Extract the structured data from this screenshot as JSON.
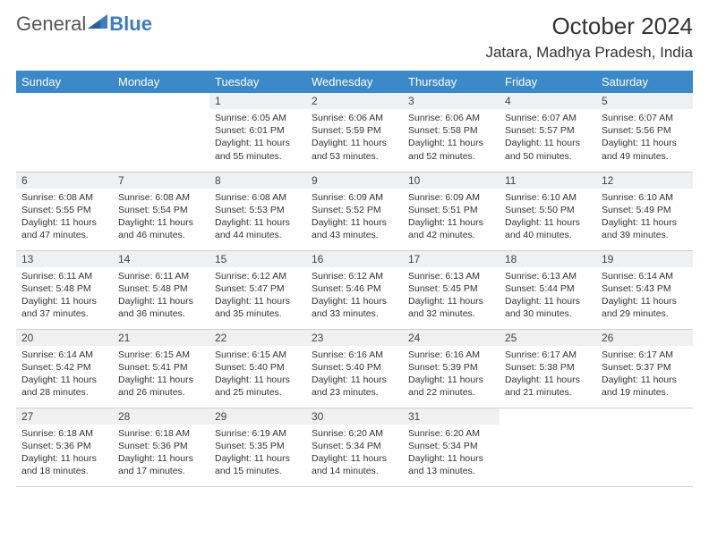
{
  "brand": {
    "part1": "General",
    "part2": "Blue"
  },
  "title": "October 2024",
  "location": "Jatara, Madhya Pradesh, India",
  "colors": {
    "header_bg": "#3b89c9",
    "header_text": "#ffffff",
    "daynum_bg": "#eef0f1",
    "border": "#d0d0d0",
    "brand_accent": "#3b7ebf"
  },
  "daysOfWeek": [
    "Sunday",
    "Monday",
    "Tuesday",
    "Wednesday",
    "Thursday",
    "Friday",
    "Saturday"
  ],
  "weeks": [
    [
      null,
      null,
      {
        "n": "1",
        "sr": "6:05 AM",
        "ss": "6:01 PM",
        "dl": "11 hours and 55 minutes."
      },
      {
        "n": "2",
        "sr": "6:06 AM",
        "ss": "5:59 PM",
        "dl": "11 hours and 53 minutes."
      },
      {
        "n": "3",
        "sr": "6:06 AM",
        "ss": "5:58 PM",
        "dl": "11 hours and 52 minutes."
      },
      {
        "n": "4",
        "sr": "6:07 AM",
        "ss": "5:57 PM",
        "dl": "11 hours and 50 minutes."
      },
      {
        "n": "5",
        "sr": "6:07 AM",
        "ss": "5:56 PM",
        "dl": "11 hours and 49 minutes."
      }
    ],
    [
      {
        "n": "6",
        "sr": "6:08 AM",
        "ss": "5:55 PM",
        "dl": "11 hours and 47 minutes."
      },
      {
        "n": "7",
        "sr": "6:08 AM",
        "ss": "5:54 PM",
        "dl": "11 hours and 46 minutes."
      },
      {
        "n": "8",
        "sr": "6:08 AM",
        "ss": "5:53 PM",
        "dl": "11 hours and 44 minutes."
      },
      {
        "n": "9",
        "sr": "6:09 AM",
        "ss": "5:52 PM",
        "dl": "11 hours and 43 minutes."
      },
      {
        "n": "10",
        "sr": "6:09 AM",
        "ss": "5:51 PM",
        "dl": "11 hours and 42 minutes."
      },
      {
        "n": "11",
        "sr": "6:10 AM",
        "ss": "5:50 PM",
        "dl": "11 hours and 40 minutes."
      },
      {
        "n": "12",
        "sr": "6:10 AM",
        "ss": "5:49 PM",
        "dl": "11 hours and 39 minutes."
      }
    ],
    [
      {
        "n": "13",
        "sr": "6:11 AM",
        "ss": "5:48 PM",
        "dl": "11 hours and 37 minutes."
      },
      {
        "n": "14",
        "sr": "6:11 AM",
        "ss": "5:48 PM",
        "dl": "11 hours and 36 minutes."
      },
      {
        "n": "15",
        "sr": "6:12 AM",
        "ss": "5:47 PM",
        "dl": "11 hours and 35 minutes."
      },
      {
        "n": "16",
        "sr": "6:12 AM",
        "ss": "5:46 PM",
        "dl": "11 hours and 33 minutes."
      },
      {
        "n": "17",
        "sr": "6:13 AM",
        "ss": "5:45 PM",
        "dl": "11 hours and 32 minutes."
      },
      {
        "n": "18",
        "sr": "6:13 AM",
        "ss": "5:44 PM",
        "dl": "11 hours and 30 minutes."
      },
      {
        "n": "19",
        "sr": "6:14 AM",
        "ss": "5:43 PM",
        "dl": "11 hours and 29 minutes."
      }
    ],
    [
      {
        "n": "20",
        "sr": "6:14 AM",
        "ss": "5:42 PM",
        "dl": "11 hours and 28 minutes."
      },
      {
        "n": "21",
        "sr": "6:15 AM",
        "ss": "5:41 PM",
        "dl": "11 hours and 26 minutes."
      },
      {
        "n": "22",
        "sr": "6:15 AM",
        "ss": "5:40 PM",
        "dl": "11 hours and 25 minutes."
      },
      {
        "n": "23",
        "sr": "6:16 AM",
        "ss": "5:40 PM",
        "dl": "11 hours and 23 minutes."
      },
      {
        "n": "24",
        "sr": "6:16 AM",
        "ss": "5:39 PM",
        "dl": "11 hours and 22 minutes."
      },
      {
        "n": "25",
        "sr": "6:17 AM",
        "ss": "5:38 PM",
        "dl": "11 hours and 21 minutes."
      },
      {
        "n": "26",
        "sr": "6:17 AM",
        "ss": "5:37 PM",
        "dl": "11 hours and 19 minutes."
      }
    ],
    [
      {
        "n": "27",
        "sr": "6:18 AM",
        "ss": "5:36 PM",
        "dl": "11 hours and 18 minutes."
      },
      {
        "n": "28",
        "sr": "6:18 AM",
        "ss": "5:36 PM",
        "dl": "11 hours and 17 minutes."
      },
      {
        "n": "29",
        "sr": "6:19 AM",
        "ss": "5:35 PM",
        "dl": "11 hours and 15 minutes."
      },
      {
        "n": "30",
        "sr": "6:20 AM",
        "ss": "5:34 PM",
        "dl": "11 hours and 14 minutes."
      },
      {
        "n": "31",
        "sr": "6:20 AM",
        "ss": "5:34 PM",
        "dl": "11 hours and 13 minutes."
      },
      null,
      null
    ]
  ],
  "labels": {
    "sunrise": "Sunrise: ",
    "sunset": "Sunset: ",
    "daylight": "Daylight: "
  }
}
